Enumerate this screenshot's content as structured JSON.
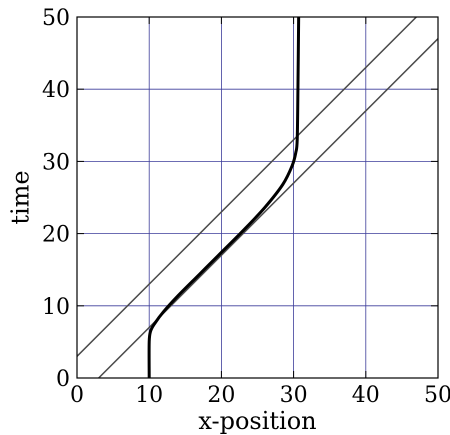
{
  "chart_data": {
    "type": "line",
    "title": "",
    "xlabel": "x-position",
    "ylabel": "time",
    "xlim": [
      0,
      50
    ],
    "ylim": [
      0,
      50
    ],
    "xticks": [
      0,
      10,
      20,
      30,
      40,
      50
    ],
    "yticks": [
      0,
      10,
      20,
      30,
      40,
      50
    ],
    "grid": true,
    "colors": {
      "grid": "#3c3c9a",
      "frame": "#000000",
      "thin_lines": "#4a4a4a",
      "trajectory": "#000000"
    },
    "series": [
      {
        "style": "thin",
        "x": [
          0,
          47
        ],
        "y": [
          3,
          50
        ]
      },
      {
        "style": "thin",
        "x": [
          3,
          50
        ],
        "y": [
          0,
          47
        ]
      },
      {
        "style": "thick",
        "x": [
          10,
          10,
          10.2,
          10.8,
          12,
          14,
          17,
          20,
          23,
          26,
          28.5,
          29.8,
          30.3,
          30.5,
          30.6,
          30.7
        ],
        "y": [
          0,
          5,
          6.5,
          7.6,
          9.2,
          11.4,
          14.4,
          17.4,
          20.4,
          23.6,
          26.8,
          29.4,
          31.2,
          33,
          40,
          50
        ]
      }
    ]
  }
}
